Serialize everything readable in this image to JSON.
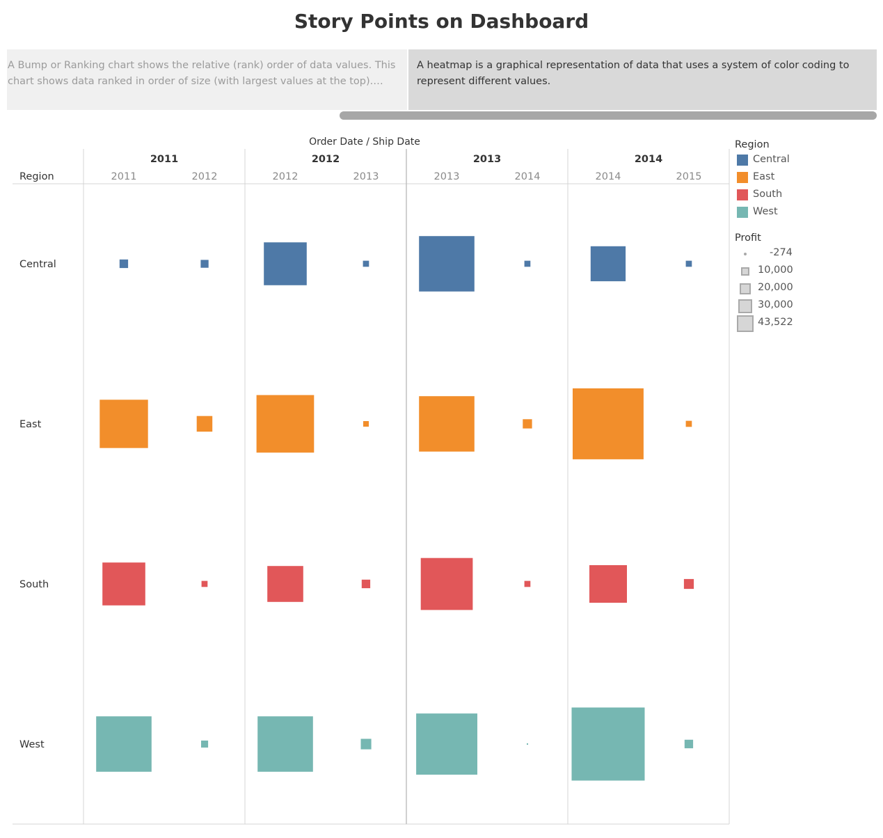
{
  "header": {
    "title": "Story Points on Dashboard"
  },
  "story": {
    "points": [
      {
        "text": "A Bump or Ranking chart shows the relative (rank) order of data values. This chart shows data ranked in order of size (with largest values at the top). They .."
      },
      {
        "text": "A heatmap is a graphical representation of data that uses a system of color coding to represent different values."
      }
    ],
    "active_index": 1
  },
  "colors": {
    "Central": "#4e79a7",
    "East": "#f28e2b",
    "South": "#e15759",
    "West": "#76b7b2"
  },
  "legend": {
    "color_title": "Region",
    "color_items": [
      "Central",
      "East",
      "South",
      "West"
    ],
    "size_title": "Profit",
    "size_items": [
      "-274",
      "10,000",
      "20,000",
      "30,000",
      "43,522"
    ]
  },
  "chart_data": {
    "type": "heatmap",
    "mark": "square",
    "header_title": "Order Date / Ship Date",
    "row_header": "Region",
    "order_years": [
      "2011",
      "2012",
      "2013",
      "2014"
    ],
    "columns": [
      {
        "order_year": "2011",
        "ship_year": "2011"
      },
      {
        "order_year": "2011",
        "ship_year": "2012"
      },
      {
        "order_year": "2012",
        "ship_year": "2012"
      },
      {
        "order_year": "2012",
        "ship_year": "2013"
      },
      {
        "order_year": "2013",
        "ship_year": "2013"
      },
      {
        "order_year": "2013",
        "ship_year": "2014"
      },
      {
        "order_year": "2014",
        "ship_year": "2014"
      },
      {
        "order_year": "2014",
        "ship_year": "2015"
      }
    ],
    "rows": [
      "Central",
      "East",
      "South",
      "West"
    ],
    "size_measure": "Profit",
    "size_range": [
      -274,
      43522
    ],
    "values": {
      "Central": [
        600,
        500,
        15000,
        300,
        25000,
        300,
        10000,
        300
      ],
      "East": [
        19000,
        2000,
        27000,
        200,
        25000,
        700,
        41000,
        300
      ],
      "South": [
        15000,
        300,
        10500,
        600,
        22000,
        300,
        11500,
        800
      ],
      "West": [
        25000,
        400,
        25000,
        900,
        30500,
        -274,
        43522,
        600
      ]
    }
  }
}
